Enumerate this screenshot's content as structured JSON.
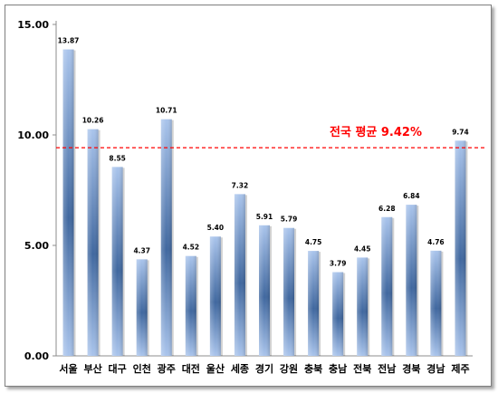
{
  "chart_data": {
    "type": "bar",
    "categories": [
      "서울",
      "부산",
      "대구",
      "인천",
      "광주",
      "대전",
      "울산",
      "세종",
      "경기",
      "강원",
      "충북",
      "충남",
      "전북",
      "전남",
      "경북",
      "경남",
      "제주"
    ],
    "values": [
      13.87,
      10.26,
      8.55,
      4.37,
      10.71,
      4.52,
      5.4,
      7.32,
      5.91,
      5.79,
      4.75,
      3.79,
      4.45,
      6.28,
      6.84,
      4.76,
      9.74
    ],
    "value_labels": [
      "13.87",
      "10.26",
      "8.55",
      "4.37",
      "10.71",
      "4.52",
      "5.40",
      "7.32",
      "5.91",
      "5.79",
      "4.75",
      "3.79",
      "4.45",
      "6.28",
      "6.84",
      "4.76",
      "9.74"
    ],
    "ylim": [
      0,
      15
    ],
    "y_ticks": [
      0,
      5,
      10,
      15
    ],
    "y_tick_labels": [
      "0.00",
      "5.00",
      "10.00",
      "15.00"
    ],
    "average": {
      "value": 9.42,
      "label": "전국 평균 9.42%",
      "color": "#ff0000"
    },
    "bar_color_light": "#a9c4ec",
    "bar_color_dark": "#3f679f",
    "grid": false,
    "legend": "none"
  }
}
